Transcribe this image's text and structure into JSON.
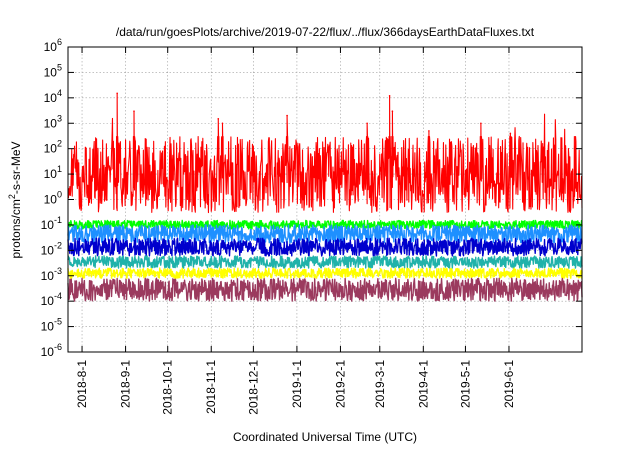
{
  "chart_data": {
    "type": "line",
    "title": "/data/run/goesPlots/archive/2019-07-22/flux/../flux/366daysEarthDataFluxes.txt",
    "xlabel": "Coordinated Universal Time (UTC)",
    "ylabel": {
      "pre": "protons/cm",
      "sup": "2",
      "post": "-s-sr-MeV"
    },
    "y_scale": "log",
    "ylim_exponents": [
      -6,
      6
    ],
    "y_ticks": [
      {
        "base": "10",
        "exp": "-6"
      },
      {
        "base": "10",
        "exp": "-5"
      },
      {
        "base": "10",
        "exp": "-4"
      },
      {
        "base": "10",
        "exp": "-3"
      },
      {
        "base": "10",
        "exp": "-2"
      },
      {
        "base": "10",
        "exp": "-1"
      },
      {
        "base": "10",
        "exp": "0"
      },
      {
        "base": "10",
        "exp": "1"
      },
      {
        "base": "10",
        "exp": "2"
      },
      {
        "base": "10",
        "exp": "3"
      },
      {
        "base": "10",
        "exp": "4"
      },
      {
        "base": "10",
        "exp": "5"
      },
      {
        "base": "10",
        "exp": "6"
      }
    ],
    "xlim": [
      "2018-07-22",
      "2019-07-23"
    ],
    "x_ticks": [
      "2018-8-1",
      "2018-9-1",
      "2018-10-1",
      "2018-11-1",
      "2018-12-1",
      "2019-1-1",
      "2019-2-1",
      "2019-3-1",
      "2019-4-1",
      "2019-5-1",
      "2019-6-1"
    ],
    "grid": true,
    "series": [
      {
        "color": "#ff0000",
        "typical_range": [
          0.3,
          300
        ],
        "peaks": [
          {
            "x": "2018-08-26",
            "y": 15000
          },
          {
            "x": "2018-09-07",
            "y": 3000
          },
          {
            "x": "2018-11-06",
            "y": 1500
          },
          {
            "x": "2018-11-09",
            "y": 1000
          },
          {
            "x": "2018-12-25",
            "y": 2000
          },
          {
            "x": "2019-02-20",
            "y": 1000
          },
          {
            "x": "2019-03-08",
            "y": 12000
          },
          {
            "x": "2019-03-10",
            "y": 3000
          },
          {
            "x": "2019-04-05",
            "y": 500
          },
          {
            "x": "2019-05-12",
            "y": 1000
          },
          {
            "x": "2019-06-02",
            "y": 400
          },
          {
            "x": "2019-07-18",
            "y": 120
          }
        ]
      },
      {
        "color": "#00ff00",
        "typical_range": [
          0.07,
          0.15
        ]
      },
      {
        "color": "#1e90ff",
        "typical_range": [
          0.02,
          0.1
        ]
      },
      {
        "color": "#0000cd",
        "typical_range": [
          0.006,
          0.03
        ]
      },
      {
        "color": "#20b2aa",
        "typical_range": [
          0.002,
          0.006
        ]
      },
      {
        "color": "#ffff00",
        "typical_range": [
          0.0008,
          0.002
        ]
      },
      {
        "color": "#9b3a5e",
        "typical_range": [
          0.0001,
          0.0008
        ]
      }
    ]
  }
}
